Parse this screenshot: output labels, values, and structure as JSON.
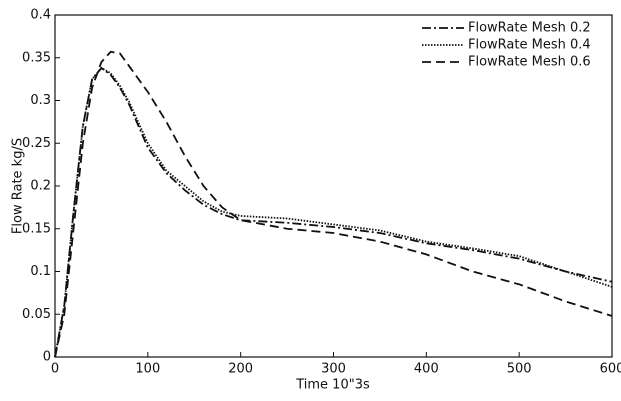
{
  "chart_data": {
    "type": "line",
    "xlabel": "Time 10\"3s",
    "ylabel": "Flow Rate kg/S",
    "x": [
      0,
      10,
      20,
      30,
      40,
      50,
      60,
      70,
      80,
      100,
      120,
      140,
      160,
      180,
      200,
      250,
      300,
      350,
      400,
      450,
      500,
      550,
      600
    ],
    "series": [
      {
        "name": "FlowRate Mesh 0.2",
        "color": "#111111",
        "values": [
          0,
          0.06,
          0.17,
          0.27,
          0.325,
          0.338,
          0.33,
          0.315,
          0.295,
          0.245,
          0.215,
          0.195,
          0.178,
          0.167,
          0.16,
          0.157,
          0.152,
          0.145,
          0.133,
          0.125,
          0.115,
          0.1,
          0.088
        ]
      },
      {
        "name": "FlowRate Mesh 0.4",
        "color": "#111111",
        "values": [
          0,
          0.06,
          0.17,
          0.27,
          0.325,
          0.338,
          0.332,
          0.317,
          0.298,
          0.25,
          0.218,
          0.2,
          0.182,
          0.17,
          0.165,
          0.162,
          0.155,
          0.148,
          0.135,
          0.127,
          0.118,
          0.1,
          0.082
        ]
      },
      {
        "name": "FlowRate Mesh 0.6",
        "color": "#111111",
        "values": [
          0,
          0.05,
          0.15,
          0.25,
          0.315,
          0.345,
          0.357,
          0.355,
          0.34,
          0.31,
          0.275,
          0.235,
          0.2,
          0.175,
          0.16,
          0.15,
          0.145,
          0.135,
          0.12,
          0.1,
          0.085,
          0.065,
          0.048
        ]
      }
    ],
    "xlim": [
      0,
      600
    ],
    "xticks": [
      0,
      100,
      200,
      300,
      400,
      500,
      600
    ],
    "ylim": [
      0,
      0.4
    ],
    "yticks": [
      0,
      0.05,
      0.1,
      0.15,
      0.2,
      0.25,
      0.3,
      0.35,
      0.4
    ],
    "grid": false,
    "legend": "upper right"
  }
}
